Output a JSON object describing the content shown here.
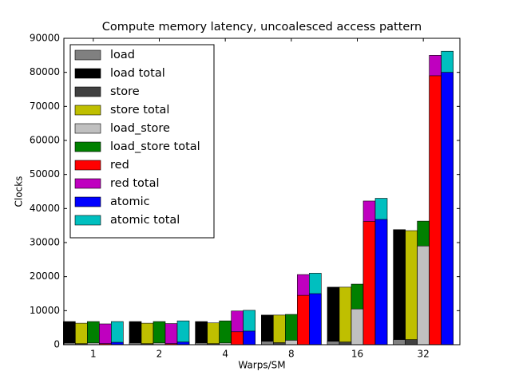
{
  "chart_data": {
    "type": "bar",
    "title": "Compute memory latency, uncoalesced access pattern",
    "xlabel": "Warps/SM",
    "ylabel": "Clocks",
    "categories": [
      "1",
      "2",
      "4",
      "8",
      "16",
      "32"
    ],
    "ylim": [
      0,
      90000
    ],
    "yticks": [
      0,
      10000,
      20000,
      30000,
      40000,
      50000,
      60000,
      70000,
      80000,
      90000
    ],
    "legend": "upper left",
    "series": [
      {
        "name": "load",
        "color": "#808080",
        "values": [
          500,
          500,
          500,
          1000,
          1000,
          1500
        ]
      },
      {
        "name": "load total",
        "color": "#000000",
        "values": [
          6800,
          6800,
          6800,
          8700,
          16900,
          33800
        ]
      },
      {
        "name": "store",
        "color": "#404040",
        "values": [
          300,
          300,
          300,
          600,
          800,
          1500
        ]
      },
      {
        "name": "store total",
        "color": "#bfbf00",
        "values": [
          6300,
          6300,
          6400,
          8700,
          16900,
          33500
        ]
      },
      {
        "name": "load_store",
        "color": "#c0c0c0",
        "values": [
          500,
          500,
          500,
          1300,
          10500,
          29000
        ]
      },
      {
        "name": "load_store total",
        "color": "#008000",
        "values": [
          6800,
          6800,
          7000,
          8900,
          17800,
          36300
        ]
      },
      {
        "name": "red",
        "color": "#ff0000",
        "values": [
          300,
          300,
          3800,
          14500,
          36200,
          79000
        ]
      },
      {
        "name": "red total",
        "color": "#bf00bf",
        "values": [
          6100,
          6200,
          9900,
          20600,
          42200,
          85000
        ]
      },
      {
        "name": "atomic",
        "color": "#0000ff",
        "values": [
          700,
          800,
          4000,
          15000,
          36800,
          80000
        ]
      },
      {
        "name": "atomic total",
        "color": "#00bfbf",
        "values": [
          6800,
          7000,
          10100,
          21000,
          43000,
          86200
        ]
      }
    ]
  }
}
